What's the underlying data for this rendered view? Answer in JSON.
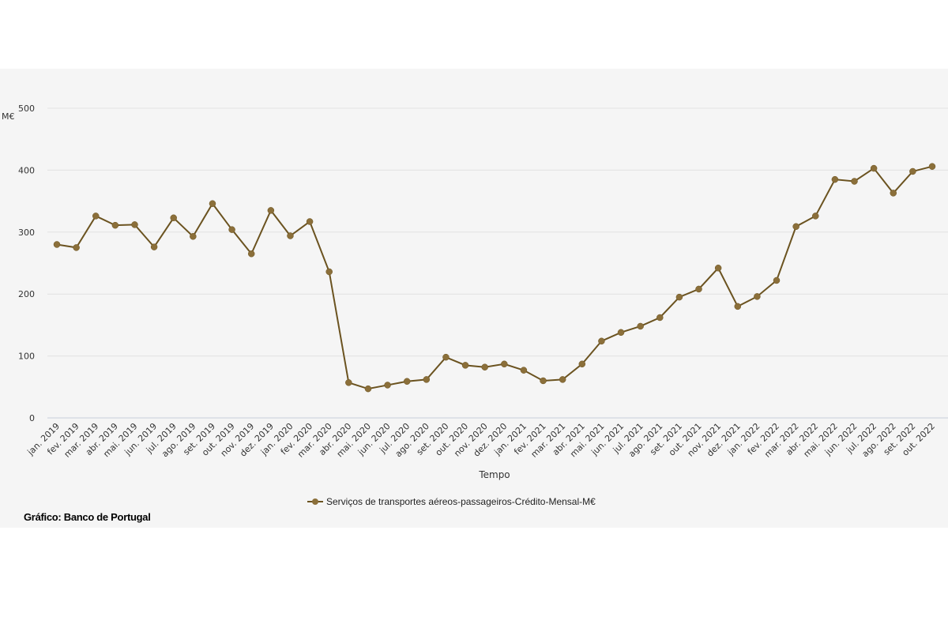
{
  "chart_data": {
    "type": "line",
    "ylabel": "M€",
    "xlabel": "Tempo",
    "ylim": [
      0,
      500
    ],
    "yticks": [
      0,
      100,
      200,
      300,
      400,
      500
    ],
    "grid": true,
    "legend_position": "bottom",
    "categories": [
      "jan. 2019",
      "fev. 2019",
      "mar. 2019",
      "abr. 2019",
      "mai. 2019",
      "jun. 2019",
      "jul. 2019",
      "ago. 2019",
      "set. 2019",
      "out. 2019",
      "nov. 2019",
      "dez. 2019",
      "jan. 2020",
      "fev. 2020",
      "mar. 2020",
      "abr. 2020",
      "mai. 2020",
      "jun. 2020",
      "jul. 2020",
      "ago. 2020",
      "set. 2020",
      "out. 2020",
      "nov. 2020",
      "dez. 2020",
      "jan. 2021",
      "fev. 2021",
      "mar. 2021",
      "abr. 2021",
      "mai. 2021",
      "jun. 2021",
      "jul. 2021",
      "ago. 2021",
      "set. 2021",
      "out. 2021",
      "nov. 2021",
      "dez. 2021",
      "jan. 2022",
      "fev. 2022",
      "mar. 2022",
      "abr. 2022",
      "mai. 2022",
      "jun. 2022",
      "jul. 2022",
      "ago. 2022",
      "set. 2022",
      "out. 2022"
    ],
    "series": [
      {
        "name": "Serviços de transportes aéreos-passageiros-Crédito-Mensal-M€",
        "color": "#6b5320",
        "marker_color": "#8b6f3a",
        "values": [
          280,
          275,
          326,
          311,
          312,
          276,
          323,
          293,
          346,
          304,
          265,
          335,
          294,
          317,
          236,
          57,
          47,
          53,
          59,
          62,
          98,
          85,
          82,
          87,
          77,
          60,
          62,
          87,
          124,
          138,
          148,
          162,
          195,
          208,
          242,
          180,
          196,
          222,
          309,
          326,
          385,
          382,
          403,
          363,
          398,
          406
        ]
      }
    ]
  },
  "credit": "Gráfico: Banco de Portugal"
}
